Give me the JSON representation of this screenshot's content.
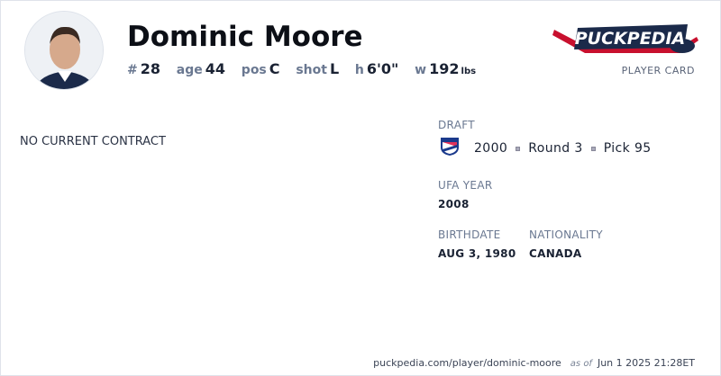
{
  "player": {
    "name": "Dominic Moore",
    "number_label": "#",
    "number": "28",
    "age_label": "age",
    "age": "44",
    "pos_label": "pos",
    "pos": "C",
    "shot_label": "shot",
    "shot": "L",
    "height_label": "h",
    "height": "6'0\"",
    "weight_label": "w",
    "weight": "192",
    "weight_unit": "lbs"
  },
  "brand": {
    "logo_text": "PuckPedia",
    "subtitle": "PLAYER CARD"
  },
  "contract": {
    "status": "NO CURRENT CONTRACT"
  },
  "draft": {
    "label": "DRAFT",
    "team_icon": "new-york-rangers-logo",
    "year": "2000",
    "round": "Round 3",
    "pick": "Pick 95"
  },
  "ufa": {
    "label": "UFA YEAR",
    "value": "2008"
  },
  "birthdate": {
    "label": "BIRTHDATE",
    "value": "AUG 3, 1980"
  },
  "nationality": {
    "label": "NATIONALITY",
    "value": "CANADA"
  },
  "footer": {
    "url": "puckpedia.com/player/dominic-moore",
    "as_of": "as of",
    "timestamp": "Jun 1 2025 21:28ET"
  }
}
